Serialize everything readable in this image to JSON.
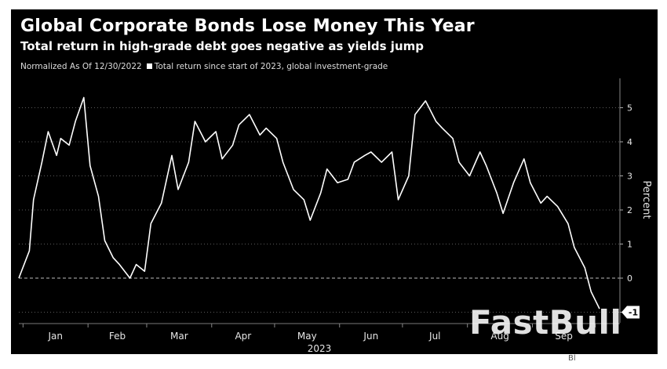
{
  "title": "Global Corporate Bonds Lose Money This Year",
  "subtitle": "Total return in high-grade debt goes negative as yields jump",
  "legend_prefix": "Normalized As Of 12/30/2022",
  "watermark": "FastBull",
  "footer_fragment": "Bl",
  "chart_data": {
    "type": "line",
    "title": "Global Corporate Bonds Lose Money This Year",
    "subtitle": "Total return in high-grade debt goes negative as yields jump",
    "xlabel": "2023",
    "ylabel": "Percent",
    "ylim": [
      -1.1,
      5.7
    ],
    "y_ticks": [
      -1,
      0,
      1,
      2,
      3,
      4,
      5
    ],
    "x_ticks": [
      "Jan",
      "Feb",
      "Mar",
      "Apr",
      "May",
      "Jun",
      "Jul",
      "Aug",
      "Sep"
    ],
    "grid": "horizontal dotted",
    "baseline": 0,
    "last_value_label": "-1",
    "series": [
      {
        "name": "Total return since start of 2023, global investment-grade",
        "color": "#ffffff",
        "x": [
          "2022-12-30",
          "2023-01-04",
          "2023-01-06",
          "2023-01-10",
          "2023-01-13",
          "2023-01-17",
          "2023-01-19",
          "2023-01-23",
          "2023-01-26",
          "2023-01-30",
          "2023-02-02",
          "2023-02-06",
          "2023-02-09",
          "2023-02-13",
          "2023-02-16",
          "2023-02-21",
          "2023-02-24",
          "2023-02-28",
          "2023-03-03",
          "2023-03-08",
          "2023-03-13",
          "2023-03-16",
          "2023-03-21",
          "2023-03-24",
          "2023-03-29",
          "2023-04-03",
          "2023-04-06",
          "2023-04-11",
          "2023-04-14",
          "2023-04-19",
          "2023-04-24",
          "2023-04-27",
          "2023-05-02",
          "2023-05-05",
          "2023-05-10",
          "2023-05-15",
          "2023-05-18",
          "2023-05-23",
          "2023-05-26",
          "2023-05-31",
          "2023-06-05",
          "2023-06-08",
          "2023-06-13",
          "2023-06-16",
          "2023-06-21",
          "2023-06-26",
          "2023-06-29",
          "2023-07-04",
          "2023-07-07",
          "2023-07-12",
          "2023-07-17",
          "2023-07-20",
          "2023-07-25",
          "2023-07-28",
          "2023-08-02",
          "2023-08-07",
          "2023-08-10",
          "2023-08-15",
          "2023-08-18",
          "2023-08-23",
          "2023-08-28",
          "2023-08-31",
          "2023-09-05",
          "2023-09-08",
          "2023-09-13",
          "2023-09-18",
          "2023-09-21",
          "2023-09-26",
          "2023-09-29",
          "2023-10-03"
        ],
        "y": [
          0.0,
          0.8,
          2.3,
          3.4,
          4.3,
          3.6,
          4.1,
          3.9,
          4.6,
          5.3,
          3.3,
          2.4,
          1.1,
          0.6,
          0.4,
          0.0,
          0.4,
          0.2,
          1.6,
          2.2,
          3.6,
          2.6,
          3.4,
          4.6,
          4.0,
          4.3,
          3.5,
          3.9,
          4.5,
          4.8,
          4.2,
          4.4,
          4.1,
          3.4,
          2.6,
          2.3,
          1.7,
          2.5,
          3.2,
          2.8,
          2.9,
          3.4,
          3.6,
          3.7,
          3.4,
          3.7,
          2.3,
          3.0,
          4.8,
          5.2,
          4.6,
          4.4,
          4.1,
          3.4,
          3.0,
          3.7,
          3.3,
          2.5,
          1.9,
          2.8,
          3.5,
          2.8,
          2.2,
          2.4,
          2.1,
          1.6,
          0.9,
          0.3,
          -0.4,
          -0.9
        ]
      }
    ]
  }
}
